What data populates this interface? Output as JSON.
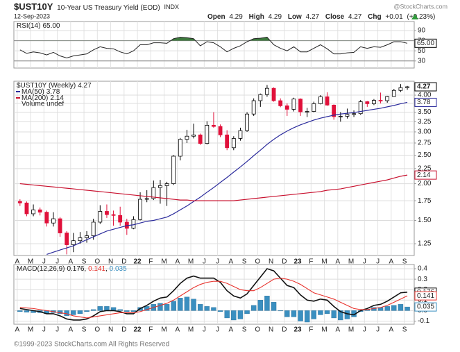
{
  "header": {
    "symbol": "$UST10Y",
    "name": "10-Year US Treasury Yield (EOD)",
    "exchange": "INDX",
    "date": "12-Sep-2023",
    "source": "@StockCharts.com",
    "quote": {
      "open_label": "Open",
      "open": 4.29,
      "high_label": "High",
      "high": 4.29,
      "low_label": "Low",
      "low": 4.27,
      "close_label": "Close",
      "close": 4.27,
      "chg_label": "Chg",
      "chg": "+0.01",
      "chg_pct": "(+0.23%)"
    }
  },
  "footer": "©1999-2023 StockCharts.com All Rights Reserved",
  "chart_data": [
    {
      "type": "line",
      "series": [
        {
          "name": "RSI(14)",
          "color": "#222222",
          "last_label": "65.00",
          "values": [
            52,
            45,
            48,
            46,
            42,
            47,
            40,
            36,
            40,
            42,
            44,
            52,
            58,
            55,
            54,
            48,
            44,
            50,
            62,
            62,
            66,
            66,
            65,
            74,
            77,
            76,
            74,
            60,
            68,
            66,
            58,
            48,
            55,
            60,
            68,
            74,
            75,
            77,
            62,
            55,
            50,
            58,
            48,
            48,
            55,
            62,
            54,
            44,
            44,
            46,
            47,
            58,
            55,
            58,
            57,
            62,
            68,
            68,
            65
          ]
        }
      ],
      "ylim": [
        16,
        108
      ],
      "yticks": [
        30,
        50,
        70,
        90
      ],
      "overbought": 70,
      "oversold": 30,
      "overbought_color": "#3d7a3d",
      "oversold_color": "#c0392b",
      "grid": true
    },
    {
      "type": "candlestick",
      "scale": "log",
      "categories": [
        "A",
        null,
        "M",
        null,
        "J",
        null,
        "J",
        null,
        "A",
        null,
        "S",
        null,
        "O",
        null,
        "N",
        null,
        "D",
        null,
        "22",
        null,
        "F",
        null,
        "M",
        null,
        "A",
        null,
        "M",
        null,
        "J",
        null,
        "J",
        null,
        "A",
        null,
        "S",
        null,
        "O",
        null,
        "N",
        null,
        "D",
        null,
        "23",
        null,
        "F",
        null,
        "M",
        null,
        "A",
        null,
        "M",
        null,
        "J",
        null,
        "J",
        null,
        "A",
        null,
        "S"
      ],
      "series": [
        {
          "name": "$UST10Y (Weekly)",
          "last_label": "4.27",
          "color": "#000000",
          "down_color": "#e0103a",
          "open": [
            1.74,
            1.72,
            1.58,
            1.63,
            1.6,
            1.47,
            1.52,
            1.36,
            1.24,
            1.28,
            1.31,
            1.33,
            1.48,
            1.61,
            1.57,
            1.56,
            1.48,
            1.41,
            1.51,
            1.77,
            1.78,
            1.94,
            1.97,
            2.0,
            2.48,
            2.83,
            2.9,
            2.93,
            2.74,
            3.16,
            3.13,
            2.93,
            2.65,
            2.85,
            3.03,
            3.45,
            3.83,
            4.02,
            4.22,
            3.83,
            3.68,
            3.58,
            3.88,
            3.51,
            3.52,
            3.74,
            3.95,
            3.7,
            3.38,
            3.39,
            3.44,
            3.46,
            3.8,
            3.74,
            3.84,
            3.83,
            3.96,
            4.15,
            4.24
          ],
          "high": [
            1.77,
            1.74,
            1.7,
            1.66,
            1.62,
            1.6,
            1.54,
            1.38,
            1.36,
            1.37,
            1.38,
            1.52,
            1.69,
            1.7,
            1.62,
            1.67,
            1.52,
            1.55,
            1.87,
            1.9,
            2.05,
            2.06,
            2.03,
            2.5,
            2.86,
            3.05,
            3.2,
            2.96,
            3.26,
            3.5,
            3.18,
            3.04,
            2.9,
            3.1,
            3.5,
            3.9,
            4.05,
            4.33,
            4.25,
            3.9,
            3.75,
            3.92,
            3.9,
            3.62,
            3.8,
            4.0,
            4.09,
            3.72,
            3.5,
            3.6,
            3.55,
            3.85,
            3.82,
            3.88,
            4.08,
            3.98,
            4.2,
            4.36,
            4.3
          ],
          "low": [
            1.68,
            1.55,
            1.55,
            1.56,
            1.43,
            1.43,
            1.32,
            1.15,
            1.17,
            1.25,
            1.26,
            1.29,
            1.46,
            1.53,
            1.44,
            1.44,
            1.34,
            1.4,
            1.5,
            1.73,
            1.76,
            1.71,
            1.68,
            1.98,
            2.4,
            2.75,
            2.85,
            2.71,
            2.72,
            3.1,
            2.88,
            2.6,
            2.6,
            2.8,
            3.0,
            3.4,
            3.65,
            3.95,
            3.8,
            3.64,
            3.4,
            3.52,
            3.4,
            3.37,
            3.5,
            3.72,
            3.68,
            3.3,
            3.25,
            3.33,
            3.37,
            3.43,
            3.65,
            3.7,
            3.75,
            3.77,
            3.95,
            4.1,
            4.17
          ],
          "close": [
            1.72,
            1.58,
            1.63,
            1.6,
            1.47,
            1.52,
            1.36,
            1.24,
            1.28,
            1.31,
            1.33,
            1.48,
            1.61,
            1.57,
            1.56,
            1.48,
            1.41,
            1.51,
            1.77,
            1.78,
            1.94,
            1.97,
            2.0,
            2.48,
            2.83,
            2.9,
            2.93,
            2.74,
            3.16,
            3.13,
            2.93,
            2.65,
            2.85,
            3.03,
            3.45,
            3.83,
            4.02,
            4.22,
            3.83,
            3.68,
            3.58,
            3.88,
            3.51,
            3.52,
            3.74,
            3.95,
            3.7,
            3.38,
            3.39,
            3.44,
            3.46,
            3.8,
            3.74,
            3.84,
            3.83,
            3.96,
            4.15,
            4.24,
            4.27
          ]
        },
        {
          "name": "MA(50)",
          "type": "line",
          "color": "#2b2b9c",
          "last_label": "3.78",
          "values": [
            null,
            null,
            null,
            null,
            1.15,
            1.17,
            1.19,
            1.21,
            1.23,
            1.26,
            1.29,
            1.32,
            1.35,
            1.38,
            1.4,
            1.42,
            1.44,
            1.45,
            1.47,
            1.49,
            1.5,
            1.52,
            1.54,
            1.58,
            1.63,
            1.68,
            1.74,
            1.8,
            1.87,
            1.94,
            2.02,
            2.1,
            2.19,
            2.28,
            2.38,
            2.49,
            2.6,
            2.72,
            2.83,
            2.93,
            3.02,
            3.1,
            3.17,
            3.23,
            3.29,
            3.34,
            3.38,
            3.42,
            3.45,
            3.47,
            3.49,
            3.52,
            3.55,
            3.58,
            3.61,
            3.65,
            3.69,
            3.74,
            3.78
          ]
        },
        {
          "name": "MA(200)",
          "type": "line",
          "color": "#c8102e",
          "last_label": "2.14",
          "values": [
            2.0,
            1.99,
            1.98,
            1.97,
            1.96,
            1.95,
            1.94,
            1.93,
            1.92,
            1.91,
            1.9,
            1.89,
            1.88,
            1.87,
            1.86,
            1.85,
            1.84,
            1.83,
            1.82,
            1.81,
            1.8,
            1.79,
            1.78,
            1.77,
            1.76,
            1.76,
            1.75,
            1.75,
            1.75,
            1.75,
            1.75,
            1.75,
            1.75,
            1.76,
            1.77,
            1.78,
            1.79,
            1.8,
            1.81,
            1.82,
            1.83,
            1.84,
            1.85,
            1.86,
            1.87,
            1.88,
            1.9,
            1.91,
            1.92,
            1.94,
            1.96,
            1.98,
            2.0,
            2.02,
            2.04,
            2.06,
            2.09,
            2.12,
            2.14
          ]
        }
      ],
      "legend_note": "Volume undef",
      "ylim": [
        1.14,
        4.46
      ],
      "yticks": [
        1.25,
        {
          "value": 1.5,
          "label": "1.50"
        },
        1.75,
        {
          "value": 2,
          "label": "2.00"
        },
        2.25,
        {
          "value": 2.5,
          "label": "2.50"
        },
        2.75,
        {
          "value": 3,
          "label": "3.00"
        },
        3.25,
        {
          "value": 3.5,
          "label": "3.50"
        },
        3.75,
        {
          "value": 4,
          "label": "4.00"
        }
      ],
      "grid": true
    },
    {
      "type": "macd",
      "title": "MACD(12,26,9)",
      "legend_separator": ", ",
      "series": [
        {
          "type": "line",
          "color": "#111111",
          "last_label": "0.176",
          "values": [
            0.02,
            0.01,
            0,
            -0.01,
            -0.03,
            -0.03,
            -0.05,
            -0.08,
            -0.09,
            -0.09,
            -0.08,
            -0.05,
            -0.01,
            0,
            0,
            -0.01,
            -0.03,
            -0.03,
            0.02,
            0.05,
            0.09,
            0.12,
            0.13,
            0.19,
            0.26,
            0.31,
            0.33,
            0.31,
            0.31,
            0.31,
            0.27,
            0.19,
            0.14,
            0.12,
            0.16,
            0.24,
            0.32,
            0.4,
            0.38,
            0.31,
            0.24,
            0.22,
            0.15,
            0.1,
            0.09,
            0.11,
            0.1,
            0.04,
            -0.01,
            -0.03,
            -0.04,
            0,
            0.02,
            0.05,
            0.06,
            0.09,
            0.13,
            0.17,
            0.176
          ]
        },
        {
          "type": "line",
          "color": "#e8322c",
          "last_label": "0.141",
          "values": [
            0.03,
            0.025,
            0.02,
            0.01,
            0,
            -0.01,
            -0.02,
            -0.03,
            -0.05,
            -0.06,
            -0.07,
            -0.06,
            -0.05,
            -0.04,
            -0.03,
            -0.02,
            -0.02,
            -0.02,
            -0.01,
            0.01,
            0.03,
            0.05,
            0.07,
            0.1,
            0.14,
            0.18,
            0.22,
            0.25,
            0.27,
            0.28,
            0.28,
            0.26,
            0.23,
            0.2,
            0.19,
            0.19,
            0.22,
            0.26,
            0.3,
            0.31,
            0.3,
            0.28,
            0.25,
            0.21,
            0.17,
            0.15,
            0.13,
            0.11,
            0.08,
            0.05,
            0.02,
            0.01,
            0.01,
            0.02,
            0.03,
            0.05,
            0.08,
            0.11,
            0.141
          ]
        },
        {
          "type": "bar",
          "color": "#3a8fc0",
          "last_label": "0.035",
          "values": [
            -0.01,
            -0.015,
            -0.02,
            -0.02,
            -0.03,
            -0.02,
            -0.03,
            -0.05,
            -0.04,
            -0.03,
            -0.01,
            0.01,
            0.04,
            0.04,
            0.03,
            0.01,
            -0.01,
            -0.01,
            0.03,
            0.04,
            0.06,
            0.07,
            0.06,
            0.09,
            0.12,
            0.13,
            0.11,
            0.06,
            0.04,
            0.03,
            -0.01,
            -0.07,
            -0.09,
            -0.08,
            -0.03,
            0.05,
            0.1,
            0.14,
            0.08,
            0,
            -0.06,
            -0.06,
            -0.1,
            -0.11,
            -0.08,
            -0.04,
            -0.03,
            -0.07,
            -0.09,
            -0.08,
            -0.06,
            -0.01,
            0.01,
            0.03,
            0.03,
            0.04,
            0.05,
            0.06,
            0.035
          ]
        }
      ],
      "ylim": [
        -0.13,
        0.44
      ],
      "yticks": [
        -0.1,
        {
          "value": 0,
          "label": "0.0"
        },
        0.1,
        0.2,
        0.3,
        0.4
      ],
      "grid": true
    }
  ]
}
